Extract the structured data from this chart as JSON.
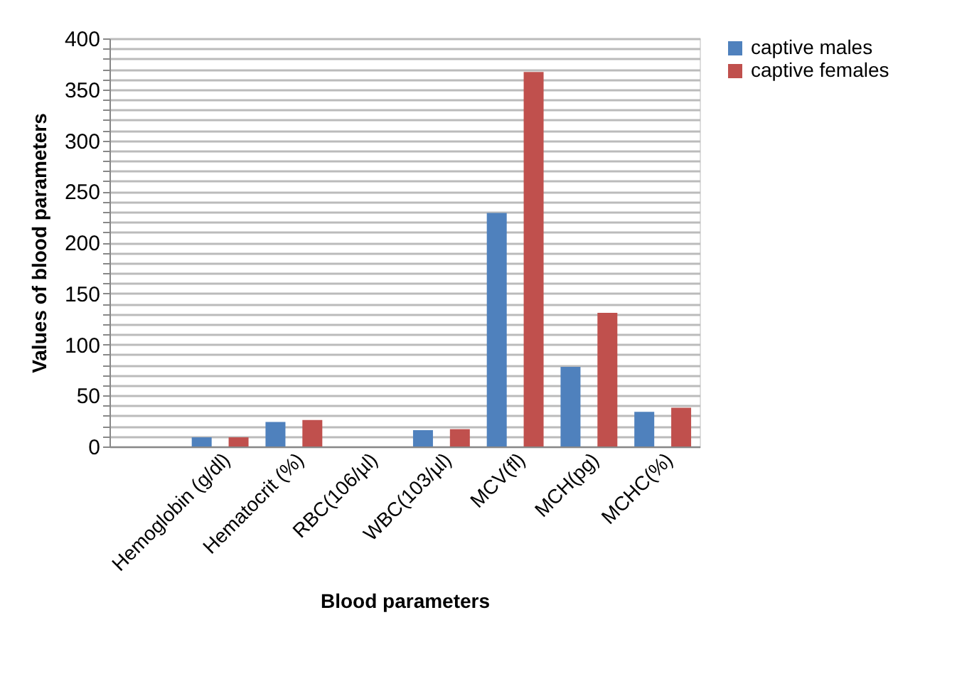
{
  "chart_data": {
    "type": "bar",
    "xlabel": "Blood parameters",
    "ylabel": "Values of blood parameters",
    "categories": [
      null,
      "Hemoglobin (g/dl)",
      "Hematocrit (%)",
      "RBC(106/µl)",
      "WBC(103/µl)",
      "MCV(fl)",
      "MCH(pg)",
      "MCHC(%)"
    ],
    "series": [
      {
        "name": "captive males",
        "color": "#4f81bd",
        "values": [
          null,
          9,
          24,
          null,
          16,
          229,
          78,
          34
        ]
      },
      {
        "name": "captive females",
        "color": "#c0504d",
        "values": [
          null,
          9,
          26,
          null,
          17,
          367,
          131,
          38
        ]
      }
    ],
    "ylim": [
      0,
      400
    ],
    "yticks": [
      0,
      {
        "value": 10,
        "label": null
      },
      {
        "value": 20,
        "label": null
      },
      {
        "value": 30,
        "label": null
      },
      {
        "value": 40,
        "label": null
      },
      50,
      {
        "value": 60,
        "label": null
      },
      {
        "value": 70,
        "label": null
      },
      {
        "value": 80,
        "label": null
      },
      {
        "value": 90,
        "label": null
      },
      100,
      {
        "value": 110,
        "label": null
      },
      {
        "value": 120,
        "label": null
      },
      {
        "value": 130,
        "label": null
      },
      {
        "value": 140,
        "label": null
      },
      150,
      {
        "value": 160,
        "label": null
      },
      {
        "value": 170,
        "label": null
      },
      {
        "value": 180,
        "label": null
      },
      {
        "value": 190,
        "label": null
      },
      200,
      {
        "value": 210,
        "label": null
      },
      {
        "value": 220,
        "label": null
      },
      {
        "value": 230,
        "label": null
      },
      {
        "value": 240,
        "label": null
      },
      250,
      {
        "value": 260,
        "label": null
      },
      {
        "value": 270,
        "label": null
      },
      {
        "value": 280,
        "label": null
      },
      {
        "value": 290,
        "label": null
      },
      300,
      {
        "value": 310,
        "label": null
      },
      {
        "value": 320,
        "label": null
      },
      {
        "value": 330,
        "label": null
      },
      {
        "value": 340,
        "label": null
      },
      350,
      {
        "value": 360,
        "label": null
      },
      {
        "value": 370,
        "label": null
      },
      {
        "value": 380,
        "label": null
      },
      {
        "value": 390,
        "label": null
      },
      400
    ],
    "grid": "y",
    "legend": "right"
  }
}
